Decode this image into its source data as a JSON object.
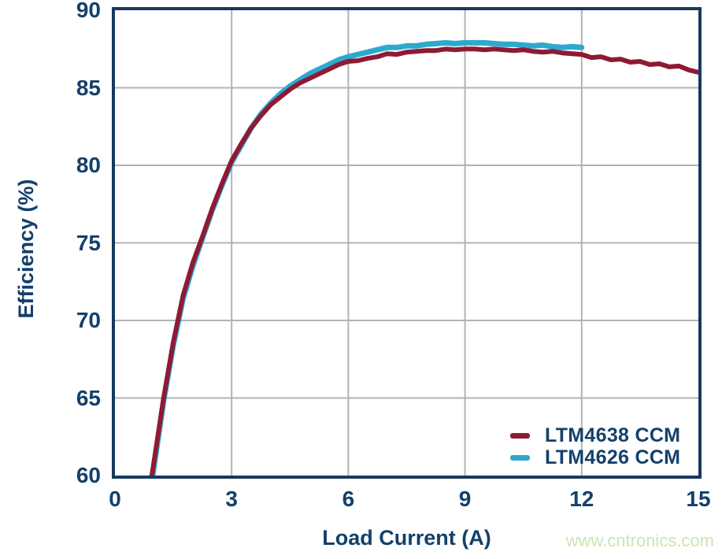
{
  "watermark": {
    "text": "www.cntronics.com"
  },
  "colors": {
    "navy": "#14406b",
    "axis": "#17395e",
    "grid": "#b0b3b8",
    "watermark_green": "#c9e7b2",
    "background": "#ffffff"
  },
  "chart_data": {
    "type": "line",
    "title": "",
    "xlabel": "Load Current (A)",
    "ylabel": "Efficiency (%)",
    "xlim": [
      0,
      15
    ],
    "ylim": [
      60,
      90
    ],
    "x_ticks": [
      0,
      3,
      6,
      9,
      12,
      15
    ],
    "y_ticks": [
      60,
      65,
      70,
      75,
      80,
      85,
      90
    ],
    "grid": true,
    "legend_position": "lower-right",
    "series": [
      {
        "name": "LTM4638 CCM",
        "color": "#8e1a34",
        "line_width": 6,
        "x": [
          0.95,
          1.25,
          1.5,
          1.75,
          2,
          2.25,
          2.5,
          2.75,
          3,
          3.25,
          3.5,
          3.75,
          4,
          4.25,
          4.5,
          4.75,
          5,
          5.25,
          5.5,
          5.75,
          6,
          6.25,
          6.5,
          6.75,
          7,
          7.25,
          7.5,
          7.75,
          8,
          8.25,
          8.5,
          8.75,
          9,
          9.25,
          9.5,
          9.75,
          10,
          10.25,
          10.5,
          10.75,
          11,
          11.25,
          11.5,
          11.75,
          12,
          12.25,
          12.5,
          12.75,
          13,
          13.25,
          13.5,
          13.75,
          14,
          14.25,
          14.5,
          14.75,
          15
        ],
        "y": [
          60.0,
          65.0,
          68.6,
          71.6,
          73.7,
          75.4,
          77.2,
          78.8,
          80.3,
          81.4,
          82.4,
          83.2,
          83.9,
          84.4,
          84.9,
          85.3,
          85.6,
          85.9,
          86.2,
          86.5,
          86.7,
          86.75,
          86.9,
          87.0,
          87.2,
          87.15,
          87.3,
          87.35,
          87.4,
          87.4,
          87.5,
          87.45,
          87.5,
          87.5,
          87.45,
          87.5,
          87.45,
          87.4,
          87.45,
          87.35,
          87.3,
          87.35,
          87.25,
          87.2,
          87.15,
          86.95,
          87.0,
          86.8,
          86.85,
          86.65,
          86.7,
          86.5,
          86.55,
          86.35,
          86.4,
          86.15,
          86.0
        ]
      },
      {
        "name": "LTM4626 CCM",
        "color": "#2ea9ce",
        "line_width": 7,
        "x": [
          0.97,
          1.25,
          1.5,
          1.75,
          2,
          2.25,
          2.5,
          2.75,
          3,
          3.25,
          3.5,
          3.75,
          4,
          4.25,
          4.5,
          4.75,
          5,
          5.25,
          5.5,
          5.75,
          6,
          6.25,
          6.5,
          6.75,
          7,
          7.25,
          7.5,
          7.75,
          8,
          8.25,
          8.5,
          8.75,
          9,
          9.25,
          9.5,
          9.75,
          10,
          10.25,
          10.5,
          10.75,
          11,
          11.25,
          11.5,
          11.75,
          12
        ],
        "y": [
          60.0,
          64.8,
          68.4,
          71.4,
          73.5,
          75.3,
          77.1,
          78.7,
          80.2,
          81.3,
          82.4,
          83.3,
          84.0,
          84.6,
          85.1,
          85.5,
          85.9,
          86.2,
          86.5,
          86.8,
          87.0,
          87.15,
          87.3,
          87.45,
          87.6,
          87.6,
          87.7,
          87.7,
          87.8,
          87.85,
          87.9,
          87.85,
          87.9,
          87.9,
          87.9,
          87.85,
          87.8,
          87.8,
          87.75,
          87.7,
          87.75,
          87.65,
          87.6,
          87.65,
          87.6
        ]
      }
    ]
  }
}
